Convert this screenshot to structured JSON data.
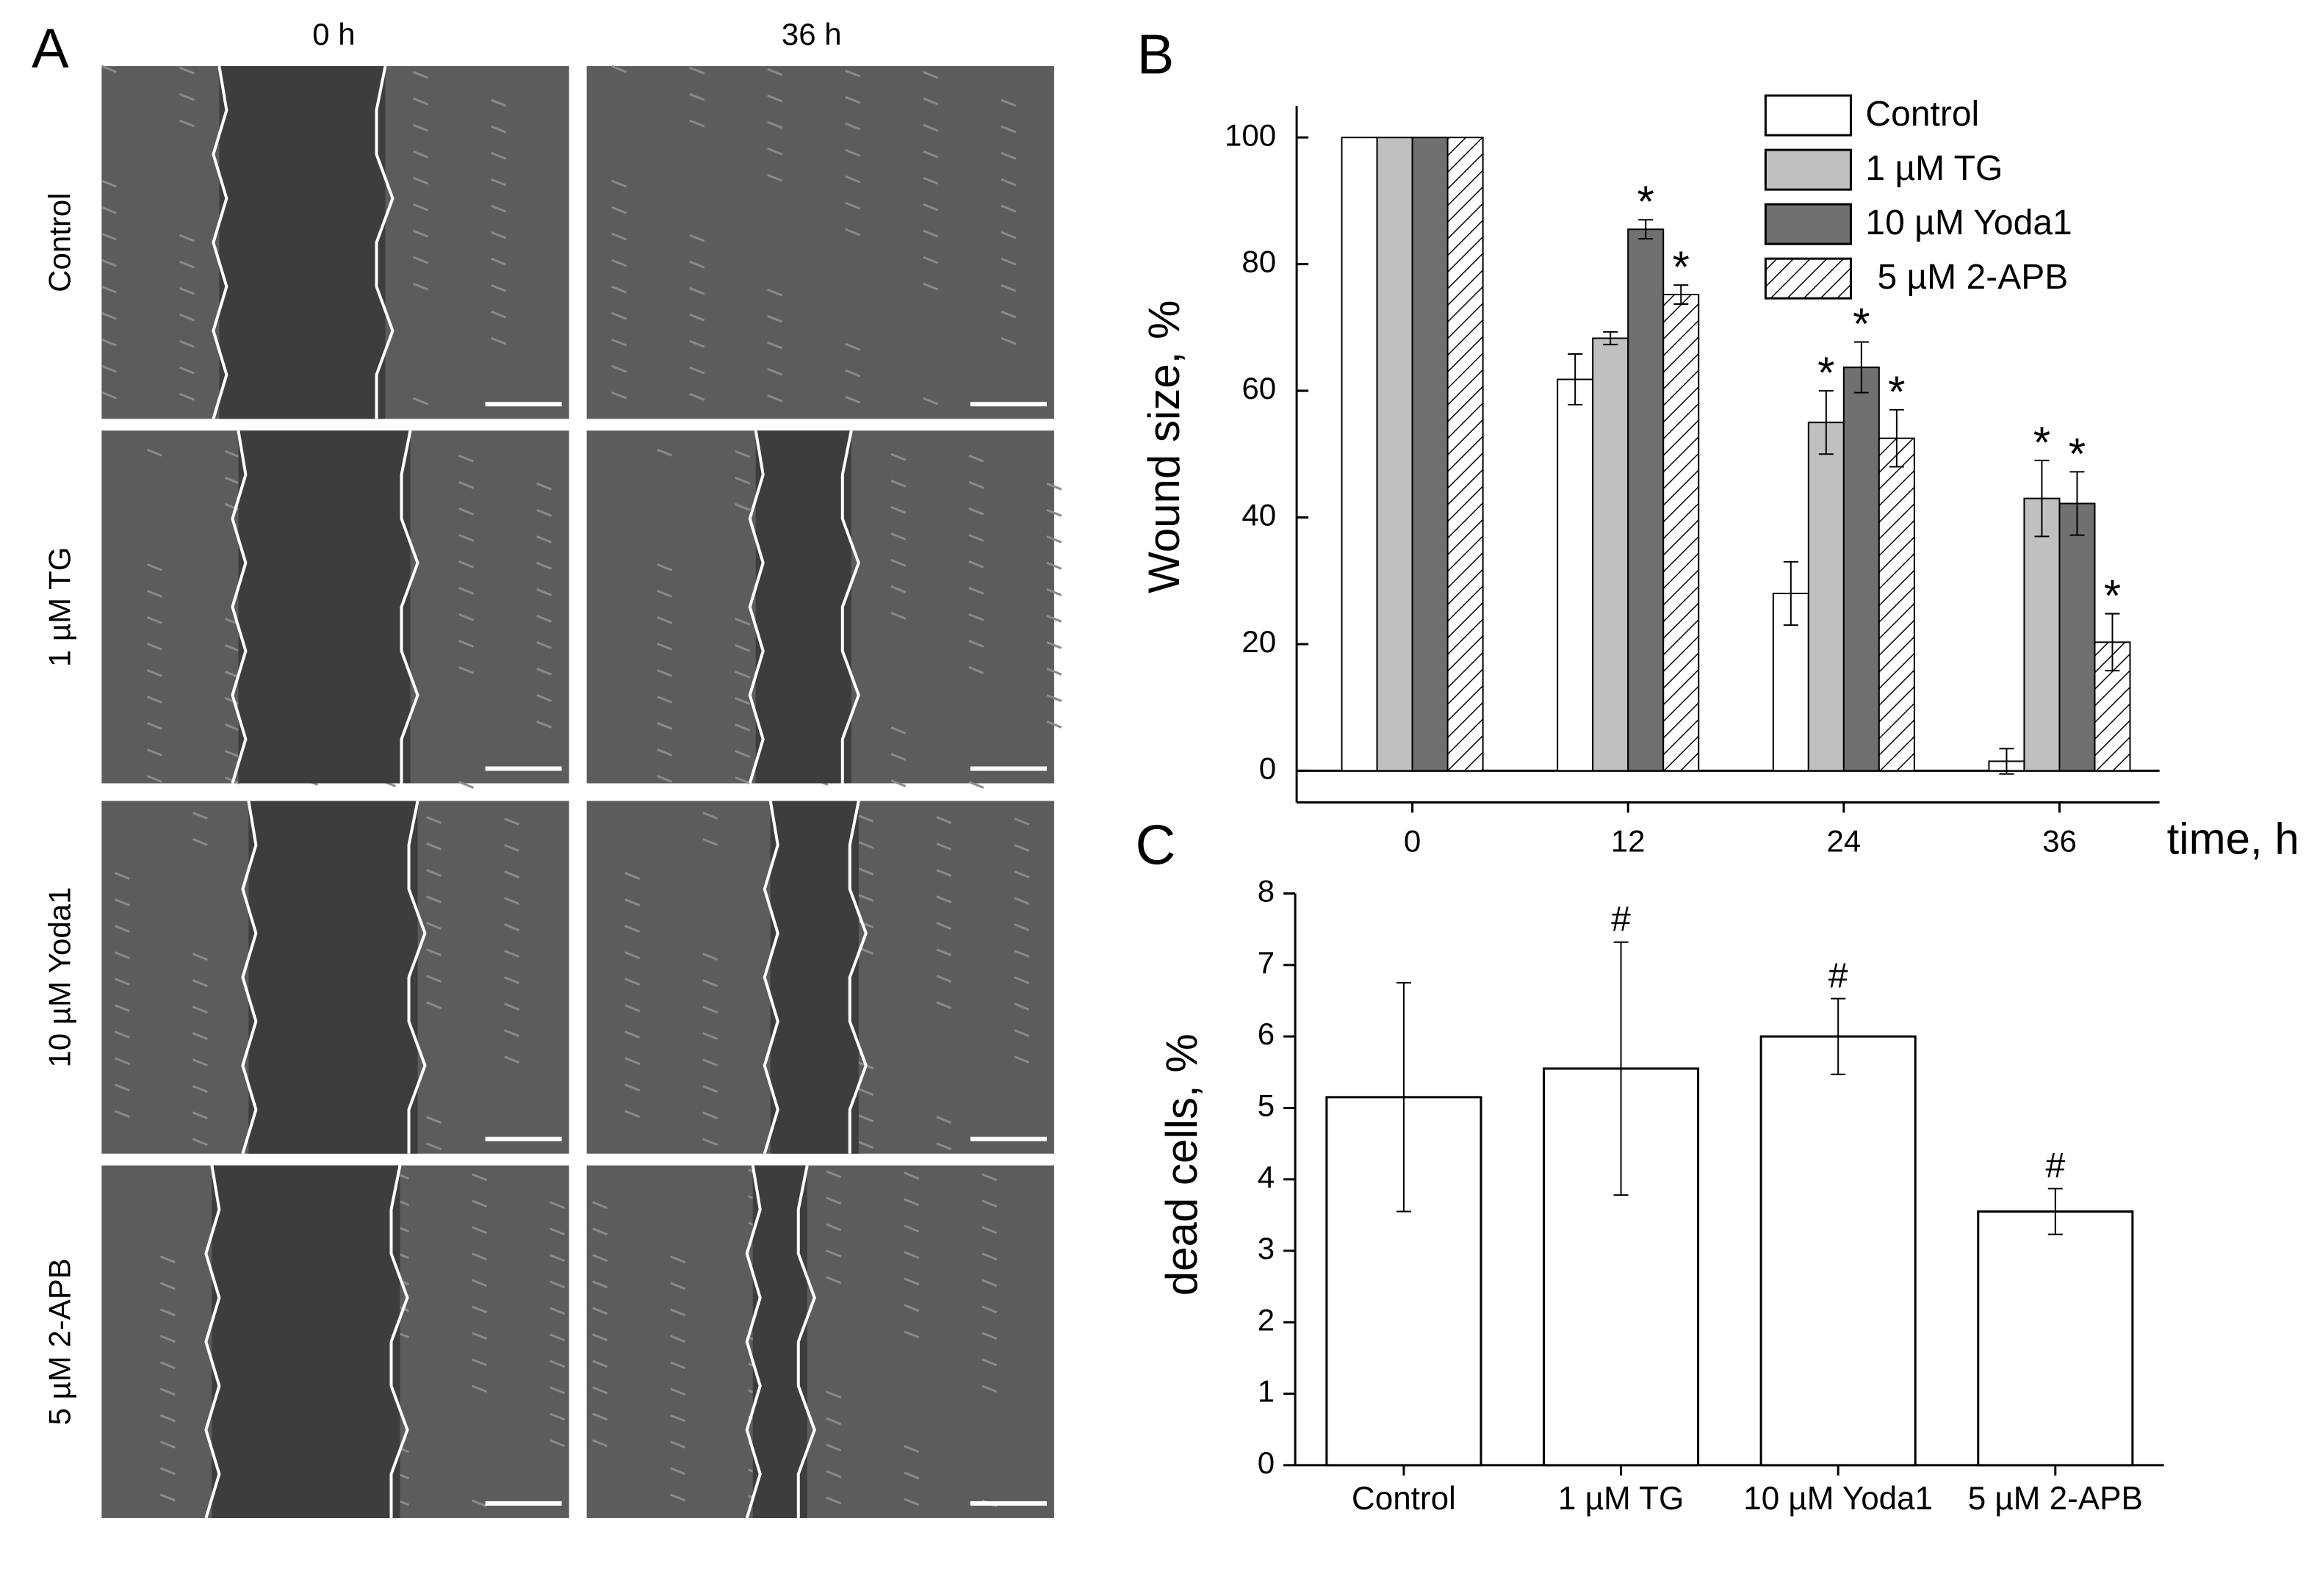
{
  "panel_a": {
    "label": "A",
    "columns": [
      "0 h",
      "36 h"
    ],
    "rows": [
      "Control",
      "1 µM TG",
      "10 µM Yoda1",
      "5 µM 2-APB"
    ]
  },
  "chart_data": [
    {
      "type": "grouped-bar",
      "panel_label": "B",
      "xlabel": "time, h",
      "ylabel": "Wound size, %",
      "categories": [
        "0",
        "12",
        "24",
        "36"
      ],
      "series": [
        {
          "name": "Control",
          "color": "#ffffff",
          "values": [
            100,
            61.8,
            28,
            1.5
          ],
          "errors": [
            0,
            4,
            5,
            2
          ],
          "markers": [
            null,
            null,
            null,
            null
          ]
        },
        {
          "name": "1 µM TG",
          "color": "#c0c0c0",
          "values": [
            100,
            68.3,
            55,
            43
          ],
          "errors": [
            0,
            1,
            5,
            6
          ],
          "markers": [
            null,
            null,
            "*",
            "*"
          ]
        },
        {
          "name": "10 µM Yoda1",
          "color": "#707070",
          "values": [
            100,
            85.5,
            63.7,
            42.2
          ],
          "errors": [
            0,
            1.5,
            4,
            5
          ],
          "markers": [
            null,
            "*",
            "*",
            "*"
          ]
        },
        {
          "name": "5 µM 2-APB",
          "color": "#ffffff",
          "hatch": true,
          "values": [
            100,
            75.2,
            52.5,
            20.3
          ],
          "errors": [
            0,
            1.5,
            4.5,
            4.5
          ],
          "markers": [
            null,
            "*",
            "*",
            "*"
          ]
        }
      ],
      "ylim": [
        -5,
        105
      ],
      "yticks": [
        0,
        20,
        40,
        60,
        80,
        100
      ],
      "legend": "top-right"
    },
    {
      "type": "bar",
      "panel_label": "C",
      "ylabel": "dead cells, %",
      "categories": [
        "Control",
        "1 µM TG",
        "10 µM Yoda1",
        "5 µM 2-APB"
      ],
      "values": [
        5.15,
        5.55,
        6.0,
        3.55
      ],
      "errors": [
        1.6,
        1.77,
        0.53,
        0.32
      ],
      "markers": [
        null,
        "#",
        "#",
        "#"
      ],
      "color": "#ffffff",
      "ylim": [
        0,
        8
      ],
      "yticks": [
        0,
        1,
        2,
        3,
        4,
        5,
        6,
        7,
        8
      ]
    }
  ]
}
